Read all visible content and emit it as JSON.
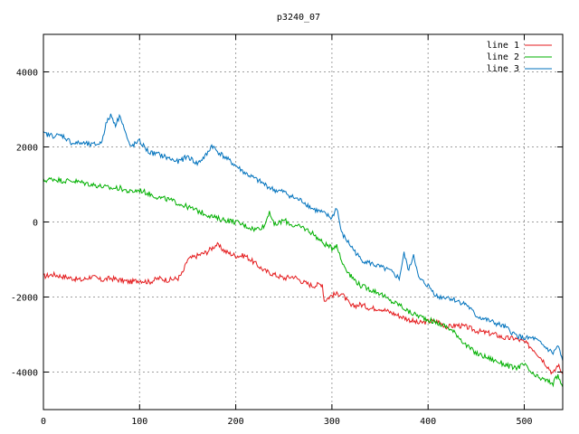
{
  "chart_data": {
    "type": "line",
    "title": "p3240_07",
    "xlabel": "",
    "ylabel": "",
    "xlim": [
      0,
      540
    ],
    "ylim": [
      -5000,
      5000
    ],
    "x_ticks": [
      0,
      100,
      200,
      300,
      400,
      500
    ],
    "y_ticks": [
      -4000,
      -2000,
      0,
      2000,
      4000
    ],
    "grid": true,
    "legend_position": "top-right",
    "series": [
      {
        "name": "line 1",
        "color": "#e41a1c",
        "x": [
          0,
          10,
          20,
          30,
          40,
          50,
          60,
          70,
          80,
          90,
          100,
          110,
          120,
          130,
          140,
          145,
          150,
          160,
          170,
          180,
          190,
          200,
          210,
          220,
          230,
          240,
          250,
          260,
          270,
          280,
          290,
          292,
          300,
          310,
          320,
          330,
          340,
          350,
          360,
          370,
          380,
          390,
          400,
          410,
          420,
          430,
          440,
          450,
          460,
          470,
          480,
          490,
          500,
          510,
          520,
          530,
          535,
          540
        ],
        "values": [
          -1450,
          -1400,
          -1450,
          -1500,
          -1550,
          -1450,
          -1550,
          -1500,
          -1550,
          -1600,
          -1550,
          -1600,
          -1500,
          -1550,
          -1500,
          -1350,
          -1000,
          -900,
          -800,
          -600,
          -800,
          -900,
          -900,
          -1100,
          -1300,
          -1400,
          -1500,
          -1450,
          -1600,
          -1700,
          -1650,
          -2100,
          -1950,
          -1900,
          -2250,
          -2200,
          -2300,
          -2300,
          -2400,
          -2500,
          -2600,
          -2700,
          -2650,
          -2650,
          -2800,
          -2750,
          -2800,
          -2900,
          -2950,
          -3000,
          -3100,
          -3100,
          -3200,
          -3400,
          -3700,
          -4050,
          -3800,
          -4050
        ]
      },
      {
        "name": "line 2",
        "color": "#00b000",
        "x": [
          0,
          10,
          20,
          30,
          40,
          50,
          60,
          70,
          80,
          90,
          100,
          110,
          120,
          130,
          140,
          150,
          160,
          170,
          180,
          190,
          200,
          210,
          220,
          230,
          235,
          240,
          250,
          260,
          270,
          280,
          290,
          300,
          305,
          310,
          320,
          330,
          340,
          350,
          360,
          370,
          380,
          390,
          400,
          410,
          420,
          430,
          440,
          450,
          460,
          470,
          480,
          490,
          500,
          510,
          520,
          530,
          535,
          540
        ],
        "values": [
          1100,
          1150,
          1100,
          1100,
          1050,
          1000,
          950,
          900,
          900,
          800,
          850,
          750,
          650,
          600,
          500,
          400,
          300,
          200,
          100,
          50,
          0,
          -100,
          -200,
          -100,
          300,
          -100,
          50,
          -100,
          -150,
          -300,
          -550,
          -700,
          -600,
          -1050,
          -1450,
          -1700,
          -1800,
          -1900,
          -2100,
          -2200,
          -2400,
          -2500,
          -2600,
          -2700,
          -2800,
          -3000,
          -3300,
          -3500,
          -3600,
          -3700,
          -3800,
          -3900,
          -3800,
          -4100,
          -4200,
          -4300,
          -4100,
          -4400
        ]
      },
      {
        "name": "line 3",
        "color": "#0072bd",
        "x": [
          0,
          10,
          20,
          30,
          40,
          50,
          60,
          65,
          70,
          75,
          80,
          85,
          90,
          100,
          110,
          120,
          130,
          140,
          150,
          160,
          170,
          175,
          180,
          190,
          200,
          210,
          220,
          230,
          240,
          250,
          260,
          270,
          280,
          290,
          300,
          305,
          310,
          320,
          330,
          340,
          350,
          360,
          370,
          375,
          380,
          385,
          390,
          400,
          410,
          420,
          430,
          440,
          450,
          460,
          470,
          480,
          490,
          500,
          510,
          520,
          530,
          535,
          540
        ],
        "values": [
          2350,
          2300,
          2300,
          2100,
          2100,
          2050,
          2100,
          2600,
          2850,
          2600,
          2850,
          2400,
          2000,
          2150,
          1850,
          1800,
          1700,
          1600,
          1750,
          1550,
          1800,
          2050,
          1900,
          1700,
          1500,
          1300,
          1150,
          1000,
          850,
          800,
          650,
          550,
          350,
          250,
          100,
          400,
          -300,
          -650,
          -1000,
          -1100,
          -1200,
          -1300,
          -1500,
          -850,
          -1300,
          -850,
          -1500,
          -1700,
          -2000,
          -2000,
          -2100,
          -2200,
          -2500,
          -2600,
          -2700,
          -2800,
          -3000,
          -3100,
          -3100,
          -3300,
          -3500,
          -3300,
          -3700
        ]
      }
    ]
  }
}
